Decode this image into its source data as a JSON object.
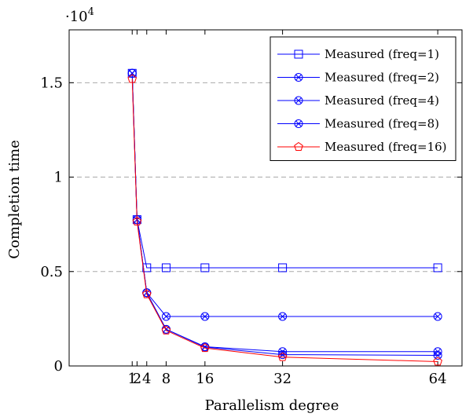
{
  "chart_data": {
    "type": "line",
    "xlabel": "Parallelism degree",
    "ylabel": "Completion time",
    "y_scale_label": "·10",
    "y_scale_exponent": "4",
    "x_ticks": [
      1,
      2,
      4,
      8,
      16,
      32,
      64
    ],
    "x_tick_labels": [
      "1",
      "2",
      "4",
      "8",
      "16",
      "32",
      "64"
    ],
    "y_ticks": [
      0,
      5000,
      10000,
      15000
    ],
    "y_tick_labels": [
      "0",
      "0.5",
      "1",
      "1.5"
    ],
    "xlim": [
      -12,
      69
    ],
    "ylim": [
      0,
      17800
    ],
    "grid": "horizontal-dashed",
    "legend_position": "top-right",
    "series": [
      {
        "name": "Measured (freq=1)",
        "color": "#0000ff",
        "marker": "square",
        "x": [
          1,
          2,
          4,
          8,
          16,
          32,
          64
        ],
        "y": [
          15500,
          7750,
          5200,
          5200,
          5200,
          5200,
          5200
        ]
      },
      {
        "name": "Measured (freq=2)",
        "color": "#0000ff",
        "marker": "otimes",
        "x": [
          1,
          2,
          4,
          8,
          16,
          32,
          64
        ],
        "y": [
          15500,
          7750,
          3880,
          2620,
          2620,
          2620,
          2620
        ]
      },
      {
        "name": "Measured (freq=4)",
        "color": "#0000ff",
        "marker": "otimes",
        "x": [
          1,
          2,
          4,
          8,
          16,
          32,
          64
        ],
        "y": [
          15500,
          7750,
          3880,
          1940,
          1020,
          760,
          760
        ]
      },
      {
        "name": "Measured (freq=8)",
        "color": "#0000ff",
        "marker": "otimes",
        "x": [
          1,
          2,
          4,
          8,
          16,
          32,
          64
        ],
        "y": [
          15500,
          7750,
          3880,
          1940,
          1000,
          600,
          560
        ]
      },
      {
        "name": "Measured (freq=16)",
        "color": "#ff0000",
        "marker": "pentagon",
        "x": [
          1,
          2,
          4,
          8,
          16,
          32,
          64
        ],
        "y": [
          15200,
          7650,
          3800,
          1880,
          950,
          470,
          230
        ]
      }
    ]
  }
}
